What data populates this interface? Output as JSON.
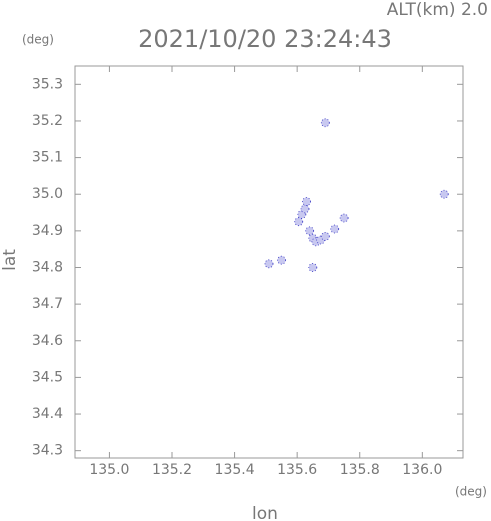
{
  "chart_data": {
    "type": "scatter",
    "title": "2021/10/20 23:24:43",
    "annotation": "ALT(km) 2.0",
    "y_unit": "(deg)",
    "x_unit": "(deg)",
    "xlabel": "lon",
    "ylabel": "lat",
    "color": "#c8c8f0",
    "edge_color": "#3030c0",
    "x": [
      135.69,
      136.07,
      135.605,
      135.615,
      135.625,
      135.63,
      135.64,
      135.65,
      135.66,
      135.675,
      135.69,
      135.72,
      135.75,
      135.51,
      135.55,
      135.65
    ],
    "y": [
      35.195,
      35.0,
      34.925,
      34.945,
      34.96,
      34.98,
      34.9,
      34.88,
      34.87,
      34.875,
      34.885,
      34.905,
      34.935,
      34.81,
      34.82,
      34.8
    ],
    "xlim": [
      134.89,
      136.13
    ],
    "ylim": [
      34.28,
      35.35
    ],
    "xticks": [
      {
        "value": 135,
        "label": "135.0"
      },
      135.2,
      135.4,
      135.6,
      135.8,
      {
        "value": 136,
        "label": "136.0"
      }
    ],
    "yticks": [
      34.3,
      34.4,
      34.5,
      34.6,
      34.7,
      34.8,
      34.9,
      {
        "value": 35,
        "label": "35.0"
      },
      35.1,
      35.2,
      35.3
    ]
  }
}
